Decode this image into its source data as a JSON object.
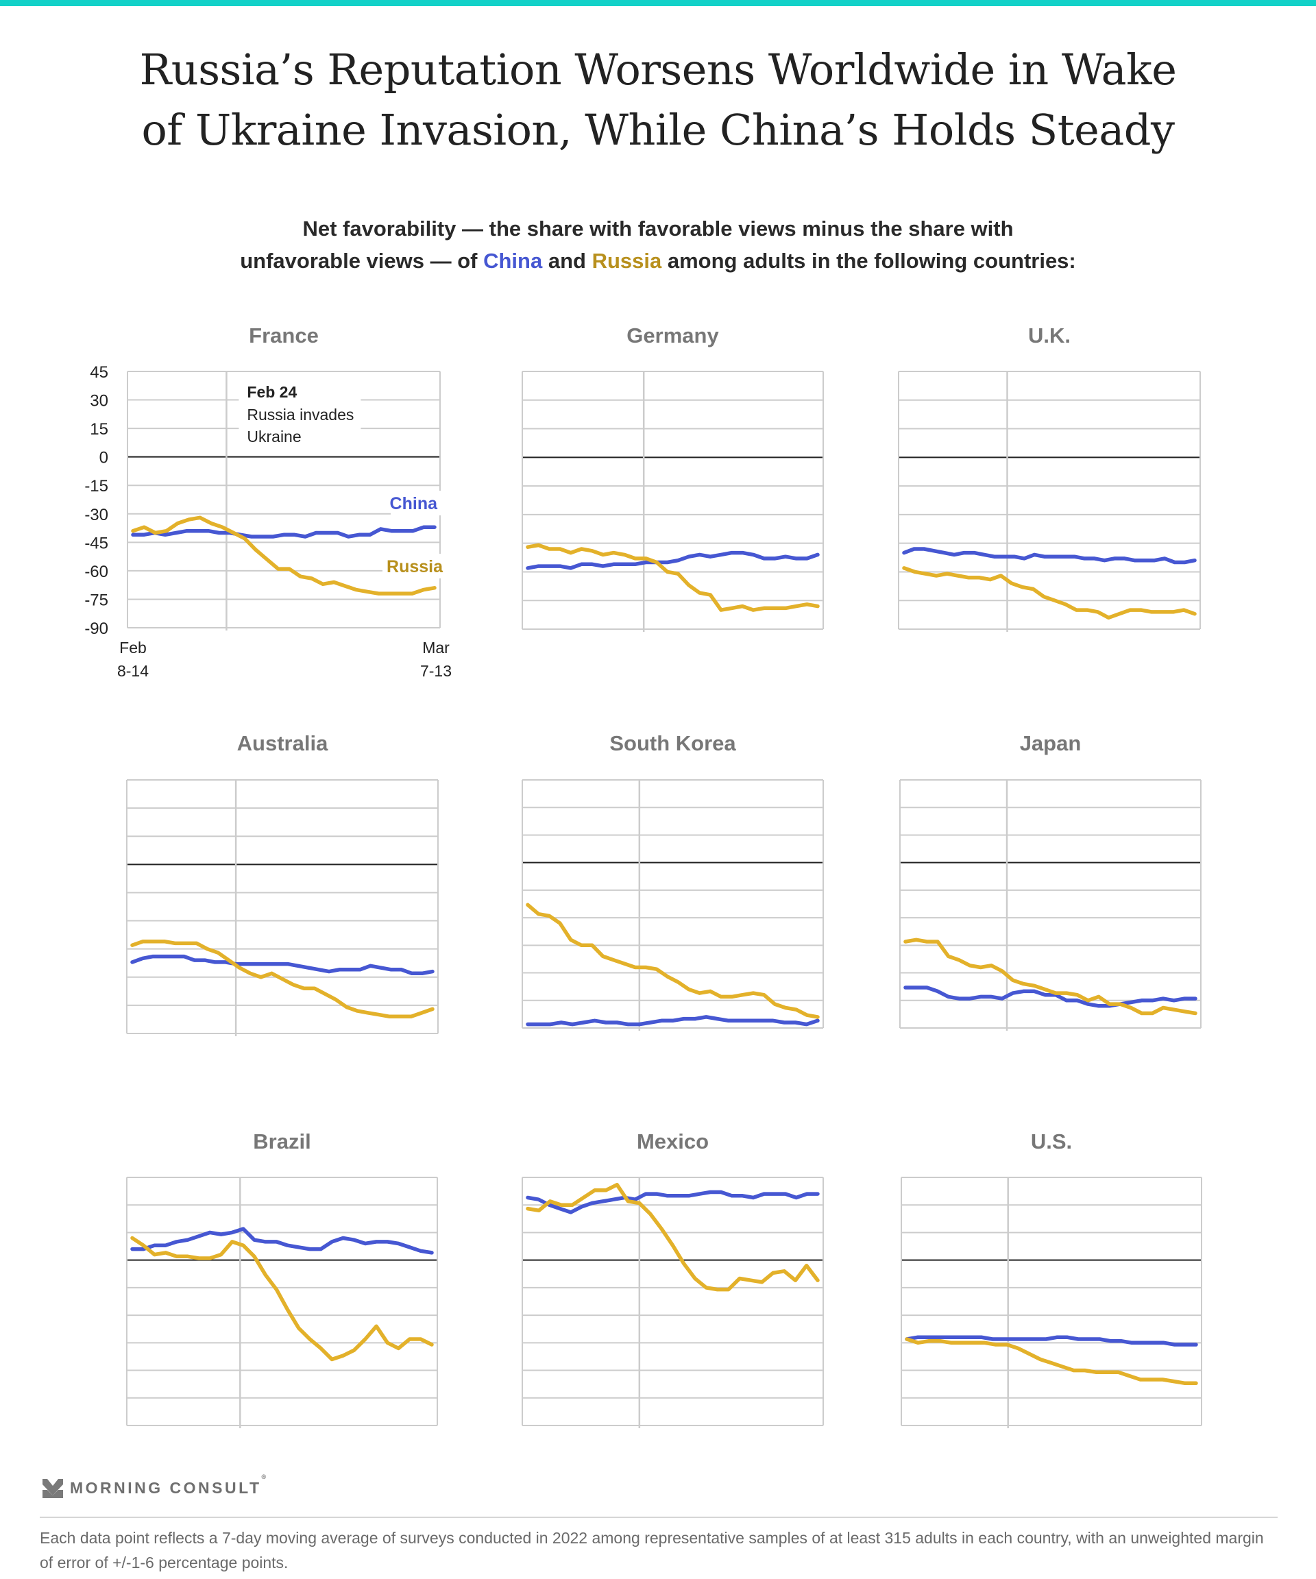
{
  "header": {
    "title_line1": "Russia’s Reputation Worsens Worldwide in Wake",
    "title_line2": "of Ukraine Invasion, While China’s Holds Steady",
    "subtitle_line1": "Net favorability — the share with favorable views minus the share with",
    "subtitle_pre": "unfavorable views — of ",
    "subtitle_china": "China",
    "subtitle_and": " and ",
    "subtitle_russia": "Russia",
    "subtitle_post": " among adults in the following countries:"
  },
  "colors": {
    "china": "#4657d2",
    "russia": "#e3b12a",
    "russia_label": "#b8901d",
    "accent_bar": "#12d1c8",
    "grid": "#cccccc",
    "zero_line": "#222222"
  },
  "annotation": {
    "date": "Feb 24",
    "line1": "Russia invades",
    "line2": "Ukraine"
  },
  "series_labels": {
    "china": "China",
    "russia": "Russia"
  },
  "x_labels": {
    "start_line1": "Feb",
    "start_line2": "8-14",
    "end_line1": "Mar",
    "end_line2": "7-13"
  },
  "footer": {
    "brand": "MORNING CONSULT",
    "brand_mark": "®",
    "note": "Each data point reflects a 7-day moving average of surveys conducted in 2022 among representative samples of at least 315 adults in each country, with an unweighted margin of error of +/-1-6 percentage points."
  },
  "chart_data": [
    {
      "type": "line",
      "title": "France",
      "ylim": [
        -90,
        45
      ],
      "yticks": [
        45,
        30,
        15,
        0,
        -15,
        -30,
        -45,
        -60,
        -75,
        -90
      ],
      "x_start": "Feb 8-14",
      "x_end": "Mar 7-13",
      "event_index_fraction": 0.31,
      "series": [
        {
          "name": "China",
          "values": [
            -41,
            -41,
            -40,
            -41,
            -40,
            -39,
            -39,
            -39,
            -40,
            -40,
            -41,
            -42,
            -42,
            -42,
            -41,
            -41,
            -42,
            -40,
            -40,
            -40,
            -42,
            -41,
            -41,
            -38,
            -39,
            -39,
            -39,
            -37,
            -37
          ]
        },
        {
          "name": "Russia",
          "values": [
            -39,
            -37,
            -40,
            -39,
            -35,
            -33,
            -32,
            -35,
            -37,
            -40,
            -43,
            -49,
            -54,
            -59,
            -59,
            -63,
            -64,
            -67,
            -66,
            -68,
            -70,
            -71,
            -72,
            -72,
            -72,
            -72,
            -70,
            -69
          ]
        }
      ]
    },
    {
      "type": "line",
      "title": "Germany",
      "ylim": [
        -90,
        45
      ],
      "event_index_fraction": 0.4,
      "series": [
        {
          "name": "China",
          "values": [
            -58,
            -57,
            -57,
            -57,
            -58,
            -56,
            -56,
            -57,
            -56,
            -56,
            -56,
            -55,
            -55,
            -55,
            -54,
            -52,
            -51,
            -52,
            -51,
            -50,
            -50,
            -51,
            -53,
            -53,
            -52,
            -53,
            -53,
            -51
          ]
        },
        {
          "name": "Russia",
          "values": [
            -47,
            -46,
            -48,
            -48,
            -50,
            -48,
            -49,
            -51,
            -50,
            -51,
            -53,
            -53,
            -55,
            -60,
            -61,
            -67,
            -71,
            -72,
            -80,
            -79,
            -78,
            -80,
            -79,
            -79,
            -79,
            -78,
            -77,
            -78
          ]
        }
      ]
    },
    {
      "type": "line",
      "title": "U.K.",
      "ylim": [
        -90,
        45
      ],
      "event_index_fraction": 0.355,
      "series": [
        {
          "name": "China",
          "values": [
            -50,
            -48,
            -48,
            -49,
            -50,
            -51,
            -50,
            -50,
            -51,
            -52,
            -52,
            -52,
            -53,
            -51,
            -52,
            -52,
            -52,
            -52,
            -53,
            -53,
            -54,
            -53,
            -53,
            -54,
            -54,
            -54,
            -53,
            -55,
            -55,
            -54
          ]
        },
        {
          "name": "Russia",
          "values": [
            -58,
            -60,
            -61,
            -62,
            -61,
            -62,
            -63,
            -63,
            -64,
            -62,
            -66,
            -68,
            -69,
            -73,
            -75,
            -77,
            -80,
            -80,
            -81,
            -84,
            -82,
            -80,
            -80,
            -81,
            -81,
            -81,
            -80,
            -82
          ]
        }
      ]
    },
    {
      "type": "line",
      "title": "Australia",
      "ylim": [
        -90,
        45
      ],
      "event_index_fraction": 0.345,
      "series": [
        {
          "name": "China",
          "values": [
            -52,
            -50,
            -49,
            -49,
            -49,
            -49,
            -51,
            -51,
            -52,
            -52,
            -53,
            -53,
            -53,
            -53,
            -53,
            -53,
            -54,
            -55,
            -56,
            -57,
            -56,
            -56,
            -56,
            -54,
            -55,
            -56,
            -56,
            -58,
            -58,
            -57
          ]
        },
        {
          "name": "Russia",
          "values": [
            -43,
            -41,
            -41,
            -41,
            -42,
            -42,
            -42,
            -45,
            -47,
            -51,
            -55,
            -58,
            -60,
            -58,
            -61,
            -64,
            -66,
            -66,
            -69,
            -72,
            -76,
            -78,
            -79,
            -80,
            -81,
            -81,
            -81,
            -79,
            -77
          ]
        }
      ]
    },
    {
      "type": "line",
      "title": "South Korea",
      "ylim": [
        -90,
        45
      ],
      "event_index_fraction": 0.385,
      "series": [
        {
          "name": "China",
          "values": [
            -88,
            -88,
            -88,
            -87,
            -88,
            -87,
            -86,
            -87,
            -87,
            -88,
            -88,
            -87,
            -86,
            -86,
            -85,
            -85,
            -84,
            -85,
            -86,
            -86,
            -86,
            -86,
            -86,
            -87,
            -87,
            -88,
            -86
          ]
        },
        {
          "name": "Russia",
          "values": [
            -23,
            -28,
            -29,
            -33,
            -42,
            -45,
            -45,
            -51,
            -53,
            -55,
            -57,
            -57,
            -58,
            -62,
            -65,
            -69,
            -71,
            -70,
            -73,
            -73,
            -72,
            -71,
            -72,
            -77,
            -79,
            -80,
            -83,
            -84
          ]
        }
      ]
    },
    {
      "type": "line",
      "title": "Japan",
      "ylim": [
        -90,
        45
      ],
      "event_index_fraction": 0.35,
      "series": [
        {
          "name": "China",
          "values": [
            -68,
            -68,
            -68,
            -70,
            -73,
            -74,
            -74,
            -73,
            -73,
            -74,
            -71,
            -70,
            -70,
            -72,
            -72,
            -75,
            -75,
            -77,
            -78,
            -78,
            -77,
            -76,
            -75,
            -75,
            -74,
            -75,
            -74,
            -74
          ]
        },
        {
          "name": "Russia",
          "values": [
            -43,
            -42,
            -43,
            -43,
            -51,
            -53,
            -56,
            -57,
            -56,
            -59,
            -64,
            -66,
            -67,
            -69,
            -71,
            -71,
            -72,
            -75,
            -73,
            -77,
            -77,
            -79,
            -82,
            -82,
            -79,
            -80,
            -81,
            -82
          ]
        }
      ]
    },
    {
      "type": "line",
      "title": "Brazil",
      "ylim": [
        -90,
        45
      ],
      "event_index_fraction": 0.36,
      "series": [
        {
          "name": "China",
          "values": [
            6,
            6,
            8,
            8,
            10,
            11,
            13,
            15,
            14,
            15,
            17,
            11,
            10,
            10,
            8,
            7,
            6,
            6,
            10,
            12,
            11,
            9,
            10,
            10,
            9,
            7,
            5,
            4
          ]
        },
        {
          "name": "Russia",
          "values": [
            12,
            8,
            3,
            4,
            2,
            2,
            1,
            1,
            3,
            10,
            8,
            2,
            -8,
            -16,
            -27,
            -37,
            -43,
            -48,
            -54,
            -52,
            -49,
            -43,
            -36,
            -45,
            -48,
            -43,
            -43,
            -46
          ]
        }
      ]
    },
    {
      "type": "line",
      "title": "Mexico",
      "ylim": [
        -90,
        45
      ],
      "event_index_fraction": 0.385,
      "series": [
        {
          "name": "China",
          "values": [
            34,
            33,
            30,
            28,
            26,
            29,
            31,
            32,
            33,
            34,
            33,
            36,
            36,
            35,
            35,
            35,
            36,
            37,
            37,
            35,
            35,
            34,
            36,
            36,
            36,
            34,
            36,
            36
          ]
        },
        {
          "name": "Russia",
          "values": [
            28,
            27,
            32,
            30,
            30,
            34,
            38,
            38,
            41,
            32,
            31,
            25,
            17,
            8,
            -2,
            -10,
            -15,
            -16,
            -16,
            -10,
            -11,
            -12,
            -7,
            -6,
            -11,
            -3,
            -11
          ]
        }
      ]
    },
    {
      "type": "line",
      "title": "U.S.",
      "ylim": [
        -90,
        45
      ],
      "event_index_fraction": 0.35,
      "series": [
        {
          "name": "China",
          "values": [
            -43,
            -42,
            -42,
            -42,
            -42,
            -42,
            -42,
            -42,
            -43,
            -43,
            -43,
            -43,
            -43,
            -43,
            -42,
            -42,
            -43,
            -43,
            -43,
            -44,
            -44,
            -45,
            -45,
            -45,
            -45,
            -46,
            -46,
            -46
          ]
        },
        {
          "name": "Russia",
          "values": [
            -43,
            -45,
            -44,
            -44,
            -45,
            -45,
            -45,
            -45,
            -46,
            -46,
            -48,
            -51,
            -54,
            -56,
            -58,
            -60,
            -60,
            -61,
            -61,
            -61,
            -63,
            -65,
            -65,
            -65,
            -66,
            -67,
            -67
          ]
        }
      ]
    }
  ]
}
